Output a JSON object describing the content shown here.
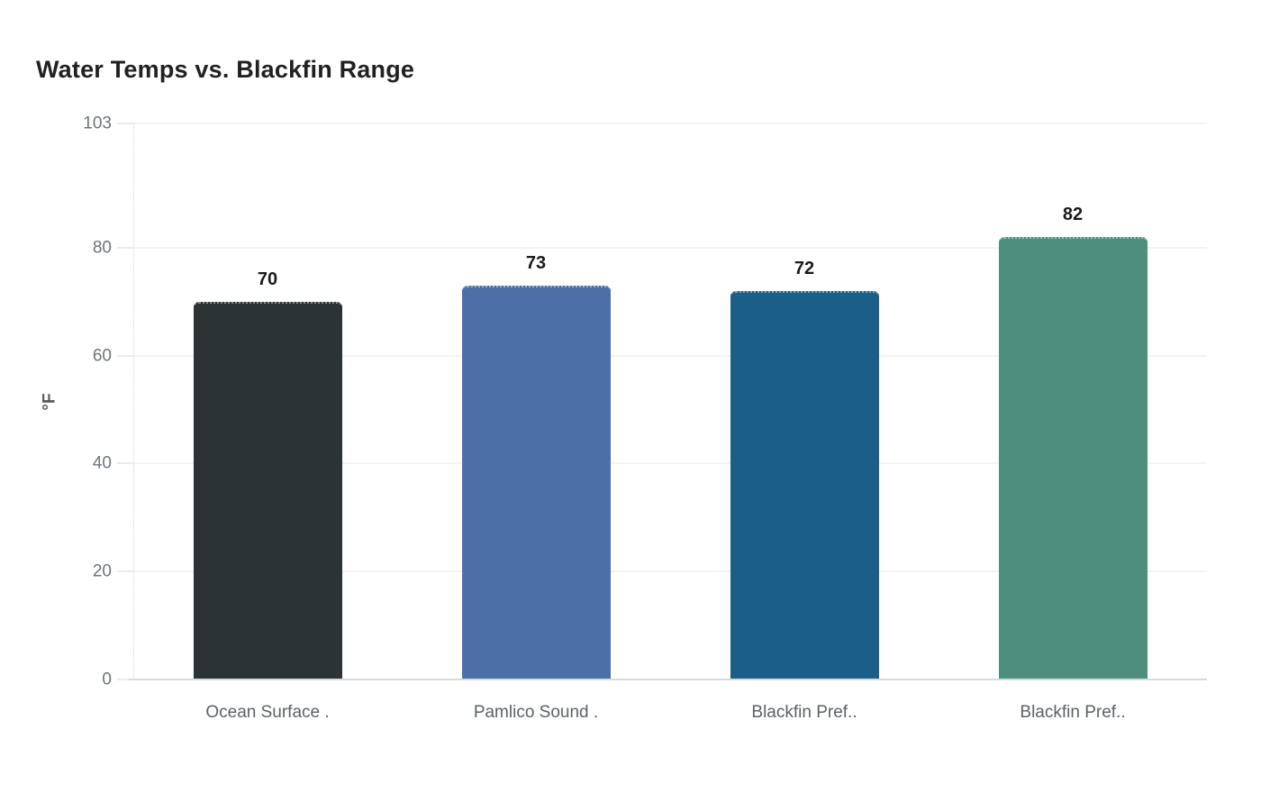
{
  "title": "Water Temps vs. Blackfin Range",
  "chart_data": {
    "type": "bar",
    "title": "Water Temps vs. Blackfin Range",
    "categories": [
      "Ocean Surface .",
      "Pamlico Sound .",
      "Blackfin Pref..",
      "Blackfin Pref.."
    ],
    "values": [
      70,
      73,
      72,
      82
    ],
    "bar_colors": [
      "#2b3337",
      "#4b70a8",
      "#1b5f88",
      "#4d8e7d"
    ],
    "xlabel": "",
    "ylabel": "°F",
    "ylim": [
      0,
      103
    ],
    "yticks": [
      0,
      20,
      40,
      60,
      80,
      103
    ],
    "grid": true,
    "legend_position": "none",
    "data_labels": true
  },
  "colors": {
    "title": "#212121",
    "tick_label": "#6f7479",
    "category_label": "#5c6266",
    "gridline": "#e9eaeb",
    "axis_line": "#d8d9da",
    "value_label": "#1a1a1a",
    "background": "#ffffff",
    "ylabel": "#565b5f"
  }
}
